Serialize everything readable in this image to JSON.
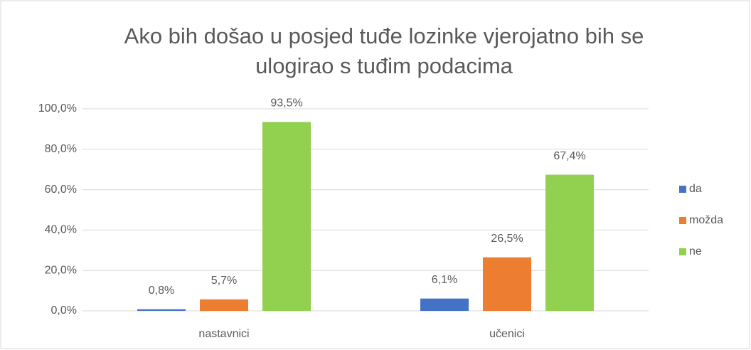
{
  "chart_data": {
    "type": "bar",
    "title": "Ako bih došao u posjed tuđe lozinke vjerojatno bih se ulogirao s tuđim podacima",
    "categories": [
      "nastavnici",
      "učenici"
    ],
    "series": [
      {
        "name": "da",
        "color": "#4472c4",
        "values": [
          0.8,
          6.1
        ],
        "value_labels": [
          "0,8%",
          "6,1%"
        ]
      },
      {
        "name": "možda",
        "color": "#ed7d31",
        "values": [
          5.7,
          26.5
        ],
        "value_labels": [
          "5,7%",
          "26,5%"
        ]
      },
      {
        "name": "ne",
        "color": "#92d050",
        "values": [
          93.5,
          67.4
        ],
        "value_labels": [
          "93,5%",
          "67,4%"
        ]
      }
    ],
    "ylim": [
      0,
      100
    ],
    "yticks": [
      {
        "value": 0,
        "label": "0,0%"
      },
      {
        "value": 20,
        "label": "20,0%"
      },
      {
        "value": 40,
        "label": "40,0%"
      },
      {
        "value": 60,
        "label": "60,0%"
      },
      {
        "value": 80,
        "label": "80,0%"
      },
      {
        "value": 100,
        "label": "100,0%"
      }
    ],
    "grid": true,
    "legend": "right"
  }
}
